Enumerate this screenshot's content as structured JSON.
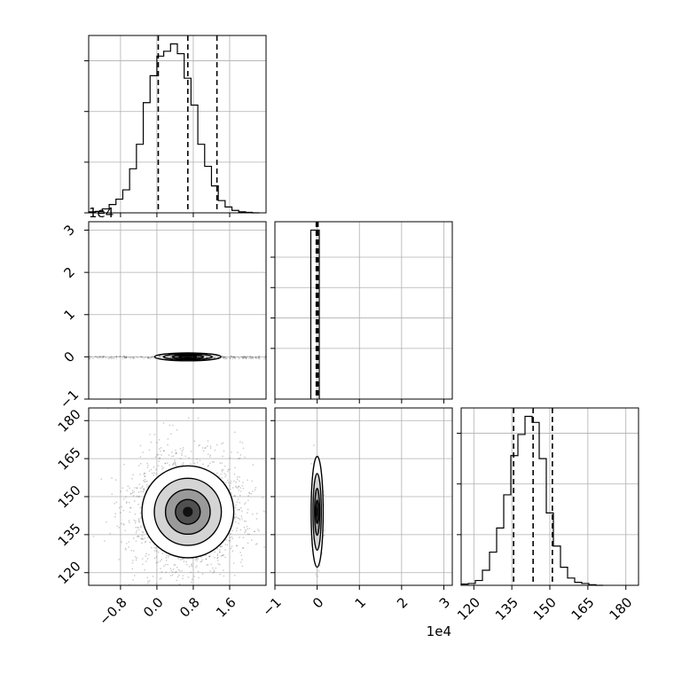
{
  "chart_data": {
    "type": "corner",
    "title": "",
    "grid": true,
    "offset_label": "1e4",
    "parameters": [
      {
        "index": 0,
        "range": [
          -1.5,
          2.4
        ],
        "ticks": [
          -0.8,
          0.0,
          0.8,
          1.6
        ],
        "tick_labels": [
          "−0.8",
          "0.0",
          "0.8",
          "1.6"
        ],
        "offset": ""
      },
      {
        "index": 1,
        "range": [
          -1,
          3.2
        ],
        "ticks": [
          -1,
          0,
          1,
          2,
          3
        ],
        "tick_labels": [
          "−1",
          "0",
          "1",
          "2",
          "3"
        ],
        "offset": "1e4"
      },
      {
        "index": 2,
        "range": [
          115,
          185
        ],
        "ticks": [
          120,
          135,
          150,
          165,
          180
        ],
        "tick_labels": [
          "120",
          "135",
          "150",
          "165",
          "180"
        ],
        "offset": ""
      }
    ],
    "histograms": [
      {
        "parameter": 0,
        "edges": [
          -1.5,
          -1.35,
          -1.2,
          -1.05,
          -0.9,
          -0.75,
          -0.6,
          -0.45,
          -0.3,
          -0.15,
          0.0,
          0.15,
          0.3,
          0.45,
          0.6,
          0.75,
          0.9,
          1.05,
          1.2,
          1.35,
          1.5,
          1.65,
          1.8,
          1.95,
          2.1,
          2.25
        ],
        "counts": [
          2,
          3,
          8,
          17,
          28,
          47,
          90,
          140,
          225,
          280,
          320,
          330,
          345,
          325,
          275,
          220,
          140,
          95,
          55,
          25,
          12,
          5,
          2,
          1,
          0
        ],
        "quantiles": [
          0.03,
          0.68,
          1.32
        ]
      },
      {
        "parameter": 1,
        "edges": [
          -0.15,
          -0.05,
          0.05
        ],
        "counts": [
          1,
          1
        ],
        "quantiles": [
          -0.02,
          0.0,
          0.02
        ]
      },
      {
        "parameter": 2,
        "edges": [
          115,
          117.8,
          120.6,
          123.4,
          126.2,
          129,
          131.8,
          134.6,
          137.4,
          140.2,
          143,
          145.8,
          148.6,
          151.4,
          154.2,
          157,
          159.8,
          162.6,
          165.4,
          168.2,
          171
        ],
        "counts": [
          2,
          3,
          8,
          25,
          55,
          95,
          150,
          215,
          250,
          280,
          270,
          210,
          120,
          65,
          30,
          12,
          5,
          3,
          1,
          0
        ],
        "quantiles": [
          135.7,
          143.4,
          151.0
        ]
      }
    ],
    "panels_2d": [
      {
        "x_parameter": 0,
        "y_parameter": 1,
        "kind": "contour-with-scatter",
        "center": [
          0.68,
          0.0
        ]
      },
      {
        "x_parameter": 0,
        "y_parameter": 2,
        "kind": "contour-with-scatter",
        "center": [
          0.68,
          144.0
        ]
      },
      {
        "x_parameter": 1,
        "y_parameter": 2,
        "kind": "contour-with-scatter",
        "center": [
          0.0,
          144.0
        ]
      }
    ]
  }
}
